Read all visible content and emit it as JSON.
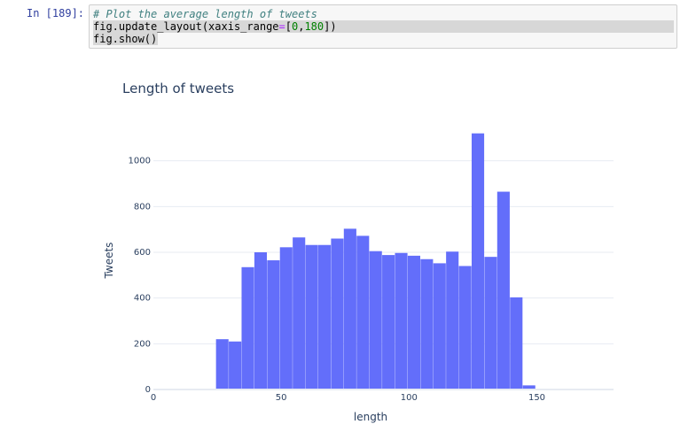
{
  "cell": {
    "prompt": "In [189]:",
    "code_comment": "# Plot the average length of tweets",
    "code_line2": {
      "a": "fig.update_layout(xaxis_range",
      "b": "=",
      "c": "[",
      "d": "0",
      "e": ",",
      "f": "180",
      "g": "])"
    },
    "code_line3": "fig.show()"
  },
  "chart_data": {
    "type": "bar",
    "title": "Length of tweets",
    "xlabel": "length",
    "ylabel": "Tweets",
    "xlim": [
      0,
      180
    ],
    "ylim": [
      0,
      1200
    ],
    "xticks": [
      0,
      50,
      100,
      150
    ],
    "yticks": [
      0,
      200,
      400,
      600,
      800,
      1000
    ],
    "bar_color": "#636efa",
    "bins": [
      {
        "x0": 24.5,
        "x1": 29.5,
        "value": 220
      },
      {
        "x0": 29.5,
        "x1": 34.5,
        "value": 210
      },
      {
        "x0": 34.5,
        "x1": 39.5,
        "value": 535
      },
      {
        "x0": 39.5,
        "x1": 44.5,
        "value": 600
      },
      {
        "x0": 44.5,
        "x1": 49.5,
        "value": 565
      },
      {
        "x0": 49.5,
        "x1": 54.5,
        "value": 622
      },
      {
        "x0": 54.5,
        "x1": 59.5,
        "value": 665
      },
      {
        "x0": 59.5,
        "x1": 64.5,
        "value": 632
      },
      {
        "x0": 64.5,
        "x1": 69.5,
        "value": 632
      },
      {
        "x0": 69.5,
        "x1": 74.5,
        "value": 660
      },
      {
        "x0": 74.5,
        "x1": 79.5,
        "value": 703
      },
      {
        "x0": 79.5,
        "x1": 84.5,
        "value": 672
      },
      {
        "x0": 84.5,
        "x1": 89.5,
        "value": 605
      },
      {
        "x0": 89.5,
        "x1": 94.5,
        "value": 588
      },
      {
        "x0": 94.5,
        "x1": 99.5,
        "value": 597
      },
      {
        "x0": 99.5,
        "x1": 104.5,
        "value": 585
      },
      {
        "x0": 104.5,
        "x1": 109.5,
        "value": 570
      },
      {
        "x0": 109.5,
        "x1": 114.5,
        "value": 552
      },
      {
        "x0": 114.5,
        "x1": 119.5,
        "value": 603
      },
      {
        "x0": 119.5,
        "x1": 124.5,
        "value": 540
      },
      {
        "x0": 124.5,
        "x1": 129.5,
        "value": 1120
      },
      {
        "x0": 129.5,
        "x1": 134.5,
        "value": 580
      },
      {
        "x0": 134.5,
        "x1": 139.5,
        "value": 865
      },
      {
        "x0": 139.5,
        "x1": 144.5,
        "value": 403
      },
      {
        "x0": 144.5,
        "x1": 149.5,
        "value": 18
      },
      {
        "x0": 149.5,
        "x1": 154.5,
        "value": 3
      }
    ]
  }
}
